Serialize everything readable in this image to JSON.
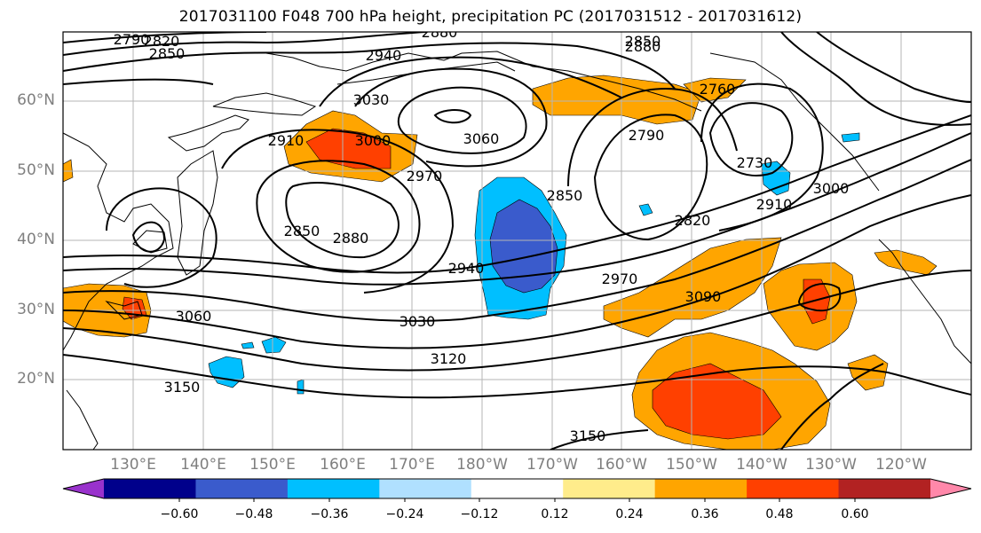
{
  "title": "2017031100 F048 700 hPa height, precipitation PC (2017031512 - 2017031612)",
  "lat_labels": [
    "60°N",
    "50°N",
    "40°N",
    "30°N",
    "20°N"
  ],
  "lon_labels": [
    "130°E",
    "140°E",
    "150°E",
    "160°E",
    "170°E",
    "180°W",
    "170°W",
    "160°W",
    "150°W",
    "140°W",
    "130°W",
    "120°W"
  ],
  "contour_labels": [
    "2790",
    "2820",
    "2850",
    "2880",
    "2940",
    "3030",
    "3060",
    "2910",
    "3000",
    "2970",
    "2850",
    "2880",
    "2850",
    "2940",
    "2850",
    "2790",
    "2880",
    "2760",
    "2730",
    "2910",
    "3000",
    "2820",
    "2970",
    "3090",
    "3060",
    "3030",
    "3120",
    "3150",
    "3150"
  ],
  "colorbar": {
    "colors": [
      "#9932CC",
      "#00008B",
      "#3A5BCC",
      "#00BFFF",
      "#B0E0FF",
      "#FFFFFF",
      "#FFEC8B",
      "#FFA500",
      "#FF4000",
      "#B22222",
      "#FF88AA"
    ],
    "ticks": [
      "−0.60",
      "−0.48",
      "−0.36",
      "−0.24",
      "−0.12",
      "0.12",
      "0.24",
      "0.36",
      "0.48",
      "0.60"
    ]
  }
}
